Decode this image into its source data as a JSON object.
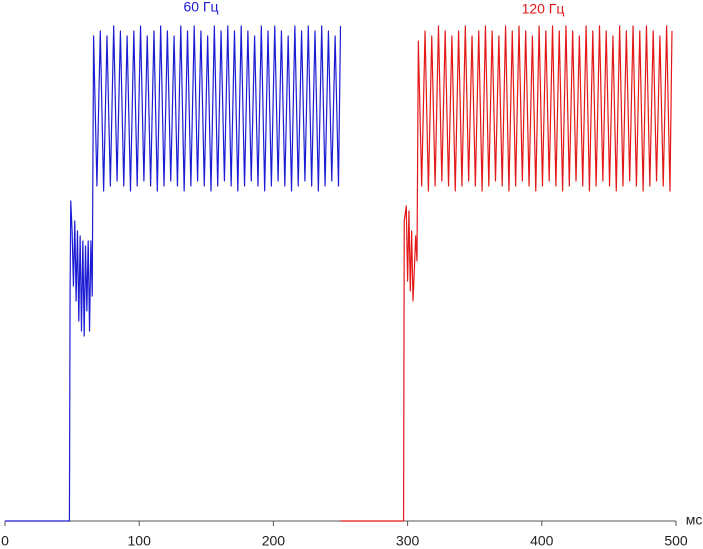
{
  "chart_data": {
    "type": "line",
    "xlim": [
      0,
      500
    ],
    "xticks": [
      0,
      100,
      200,
      300,
      400,
      500
    ],
    "x_label": "мс",
    "ylim": [
      0,
      100
    ],
    "series": [
      {
        "name": "60 Гц",
        "color": "#1c1cd4",
        "x": [
          0,
          48,
          48.5,
          49,
          50,
          51,
          52,
          53,
          54,
          55,
          56,
          57,
          58,
          59,
          60,
          61,
          62,
          63,
          64,
          65,
          66,
          68.5,
          71,
          73.5,
          76,
          78.5,
          81,
          83.5,
          86,
          88.5,
          91,
          93.5,
          96,
          98.5,
          101,
          103.5,
          106,
          108.5,
          111,
          113.5,
          116,
          118.5,
          121,
          123.5,
          126,
          128.5,
          131,
          133.5,
          136,
          138.5,
          141,
          143.5,
          146,
          148.5,
          151,
          153.5,
          156,
          158.5,
          161,
          163.5,
          166,
          168.5,
          171,
          173.5,
          176,
          178.5,
          181,
          183.5,
          186,
          188.5,
          191,
          193.5,
          196,
          198.5,
          201,
          203.5,
          206,
          208.5,
          211,
          213.5,
          216,
          218.5,
          221,
          223.5,
          226,
          228.5,
          231,
          233.5,
          236,
          238.5,
          241,
          243.5,
          246,
          248.5,
          250
        ],
        "values": [
          0,
          0,
          46,
          64,
          58,
          47,
          60,
          44,
          58,
          40,
          57,
          38,
          56,
          37,
          55,
          42,
          56,
          38,
          56,
          45,
          97,
          67,
          98,
          66,
          97,
          67,
          99,
          68,
          98,
          67,
          97,
          66,
          98,
          67,
          99,
          68,
          97,
          67,
          98,
          66,
          99,
          67,
          98,
          68,
          97,
          67,
          99,
          66,
          98,
          67,
          99,
          68,
          98,
          67,
          97,
          66,
          99,
          67,
          98,
          68,
          99,
          67,
          98,
          66,
          99,
          67,
          98,
          68,
          97,
          67,
          99,
          66,
          98,
          67,
          99,
          68,
          98,
          67,
          97,
          66,
          99,
          67,
          98,
          68,
          99,
          67,
          98,
          66,
          99,
          67,
          98,
          68,
          97,
          67,
          99
        ]
      },
      {
        "name": "120 Гц",
        "color": "#e41818",
        "x": [
          250,
          297,
          297.5,
          299,
          300,
          301,
          302,
          303,
          304,
          305,
          306,
          307,
          308,
          310.5,
          313,
          315.5,
          318,
          320.5,
          323,
          325.5,
          328,
          330.5,
          333,
          335.5,
          338,
          340.5,
          343,
          345.5,
          348,
          350.5,
          353,
          355.5,
          358,
          360.5,
          363,
          365.5,
          368,
          370.5,
          373,
          375.5,
          378,
          380.5,
          383,
          385.5,
          388,
          390.5,
          393,
          395.5,
          398,
          400.5,
          403,
          405.5,
          408,
          410.5,
          413,
          415.5,
          418,
          420.5,
          423,
          425.5,
          428,
          430.5,
          433,
          435.5,
          438,
          440.5,
          443,
          445.5,
          448,
          450.5,
          453,
          455.5,
          458,
          460.5,
          463,
          465.5,
          468,
          470.5,
          473,
          475.5,
          478,
          480.5,
          483,
          485.5,
          488,
          490.5,
          493,
          495.5,
          497
        ],
        "values": [
          0,
          0,
          60,
          63,
          48,
          62,
          46,
          58,
          44,
          50,
          57,
          52,
          96,
          67,
          98,
          66,
          97,
          67,
          99,
          68,
          98,
          67,
          97,
          66,
          98,
          67,
          99,
          68,
          97,
          67,
          98,
          66,
          99,
          67,
          98,
          68,
          97,
          67,
          99,
          66,
          98,
          67,
          99,
          68,
          98,
          67,
          97,
          66,
          99,
          67,
          98,
          68,
          99,
          67,
          98,
          66,
          99,
          67,
          98,
          68,
          97,
          67,
          99,
          66,
          98,
          67,
          99,
          68,
          98,
          67,
          97,
          66,
          99,
          67,
          98,
          68,
          99,
          67,
          98,
          66,
          99,
          67,
          98,
          68,
          97,
          67,
          99,
          66,
          98
        ]
      }
    ]
  }
}
